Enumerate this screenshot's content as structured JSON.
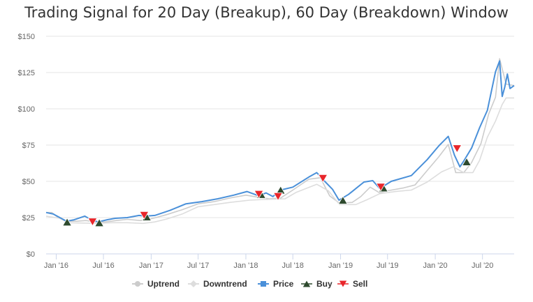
{
  "chart_data": {
    "type": "line",
    "title": "Trading Signal for 20 Day (Breakup), 60 Day (Breakdown) Window",
    "xlabel": "",
    "ylabel": "",
    "x_range": [
      "2015-11-23",
      "2020-10-31"
    ],
    "ylim": [
      0,
      150
    ],
    "y_ticks": [
      0,
      25,
      50,
      75,
      100,
      125,
      150
    ],
    "y_tick_labels": [
      "$0",
      "$25",
      "$50",
      "$75",
      "$100",
      "$125",
      "$150"
    ],
    "x_ticks": [
      "2016-01-01",
      "2016-07-01",
      "2017-01-01",
      "2017-07-01",
      "2018-01-01",
      "2018-07-01",
      "2019-01-01",
      "2019-07-01",
      "2020-01-01",
      "2020-07-01"
    ],
    "x_tick_labels": [
      "Jan '16",
      "Jul '16",
      "Jan '17",
      "Jul '17",
      "Jan '18",
      "Jul '18",
      "Jan '19",
      "Jul '19",
      "Jan '20",
      "Jul '20"
    ],
    "grid": true,
    "legend_position": "bottom",
    "series": [
      {
        "name": "Uptrend",
        "color": "#cccccc",
        "points": [
          [
            "2015-11-23",
            28.5
          ],
          [
            "2015-12-15",
            28.5
          ],
          [
            "2016-01-10",
            24.8
          ],
          [
            "2016-02-15",
            22.5
          ],
          [
            "2016-03-20",
            22.5
          ],
          [
            "2016-04-25",
            23.0
          ],
          [
            "2016-06-01",
            22.0
          ],
          [
            "2016-07-10",
            22.0
          ],
          [
            "2016-08-20",
            23.0
          ],
          [
            "2016-10-01",
            23.8
          ],
          [
            "2016-11-20",
            23.0
          ],
          [
            "2016-12-15",
            23.5
          ],
          [
            "2017-01-15",
            24.8
          ],
          [
            "2017-03-01",
            27.0
          ],
          [
            "2017-05-01",
            30.5
          ],
          [
            "2017-07-01",
            34.5
          ],
          [
            "2017-09-01",
            36.0
          ],
          [
            "2017-11-01",
            38.5
          ],
          [
            "2018-01-01",
            40.5
          ],
          [
            "2018-02-20",
            39.0
          ],
          [
            "2018-04-01",
            38.0
          ],
          [
            "2018-05-15",
            38.5
          ],
          [
            "2018-07-01",
            44.0
          ],
          [
            "2018-09-01",
            51.5
          ],
          [
            "2018-10-15",
            52.5
          ],
          [
            "2018-11-20",
            40.0
          ],
          [
            "2018-12-28",
            35.0
          ],
          [
            "2019-02-15",
            35.5
          ],
          [
            "2019-03-20",
            39.5
          ],
          [
            "2019-04-25",
            46.0
          ],
          [
            "2019-06-01",
            42.0
          ],
          [
            "2019-07-01",
            43.5
          ],
          [
            "2019-09-01",
            45.5
          ],
          [
            "2019-10-15",
            47.5
          ],
          [
            "2019-12-01",
            57.5
          ],
          [
            "2020-01-15",
            67.0
          ],
          [
            "2020-02-20",
            75.5
          ],
          [
            "2020-03-20",
            56.0
          ],
          [
            "2020-04-20",
            56.0
          ],
          [
            "2020-05-20",
            63.0
          ],
          [
            "2020-06-25",
            76.0
          ],
          [
            "2020-07-25",
            96.5
          ],
          [
            "2020-08-20",
            108.0
          ],
          [
            "2020-09-05",
            134.5
          ],
          [
            "2020-09-30",
            117.0
          ],
          [
            "2020-10-31",
            116.0
          ]
        ]
      },
      {
        "name": "Downtrend",
        "color": "#dddddd",
        "points": [
          [
            "2015-11-23",
            26.0
          ],
          [
            "2016-01-15",
            24.5
          ],
          [
            "2016-02-15",
            21.5
          ],
          [
            "2016-06-01",
            21.0
          ],
          [
            "2016-08-01",
            21.5
          ],
          [
            "2016-10-01",
            21.5
          ],
          [
            "2016-12-01",
            21.0
          ],
          [
            "2017-01-15",
            22.0
          ],
          [
            "2017-03-01",
            24.0
          ],
          [
            "2017-05-01",
            27.5
          ],
          [
            "2017-07-01",
            32.5
          ],
          [
            "2017-09-01",
            34.0
          ],
          [
            "2017-11-01",
            35.5
          ],
          [
            "2018-01-15",
            37.0
          ],
          [
            "2018-03-15",
            37.5
          ],
          [
            "2018-06-01",
            38.0
          ],
          [
            "2018-07-15",
            42.5
          ],
          [
            "2018-10-01",
            48.0
          ],
          [
            "2018-11-15",
            43.5
          ],
          [
            "2018-12-28",
            34.0
          ],
          [
            "2019-03-01",
            34.0
          ],
          [
            "2019-04-15",
            37.5
          ],
          [
            "2019-06-01",
            41.5
          ],
          [
            "2019-08-01",
            43.0
          ],
          [
            "2019-10-01",
            44.0
          ],
          [
            "2019-12-01",
            49.5
          ],
          [
            "2020-01-25",
            56.5
          ],
          [
            "2020-03-10",
            60.0
          ],
          [
            "2020-04-20",
            56.0
          ],
          [
            "2020-05-25",
            56.0
          ],
          [
            "2020-06-20",
            64.5
          ],
          [
            "2020-07-20",
            80.5
          ],
          [
            "2020-08-20",
            91.5
          ],
          [
            "2020-09-15",
            103.0
          ],
          [
            "2020-09-30",
            107.5
          ],
          [
            "2020-10-31",
            107.5
          ]
        ]
      },
      {
        "name": "Price",
        "color": "#4a90d9",
        "points": [
          [
            "2015-11-23",
            28.5
          ],
          [
            "2015-12-20",
            27.5
          ],
          [
            "2016-01-15",
            25.0
          ],
          [
            "2016-02-10",
            22.5
          ],
          [
            "2016-03-10",
            23.5
          ],
          [
            "2016-04-20",
            26.0
          ],
          [
            "2016-05-15",
            23.5
          ],
          [
            "2016-06-10",
            22.0
          ],
          [
            "2016-07-15",
            23.5
          ],
          [
            "2016-08-15",
            24.5
          ],
          [
            "2016-10-01",
            25.0
          ],
          [
            "2016-11-15",
            26.5
          ],
          [
            "2016-12-10",
            26.0
          ],
          [
            "2017-01-15",
            26.5
          ],
          [
            "2017-03-15",
            30.0
          ],
          [
            "2017-05-15",
            34.5
          ],
          [
            "2017-07-15",
            36.0
          ],
          [
            "2017-09-15",
            38.0
          ],
          [
            "2017-11-15",
            40.5
          ],
          [
            "2018-01-05",
            43.0
          ],
          [
            "2018-02-20",
            40.0
          ],
          [
            "2018-03-20",
            42.0
          ],
          [
            "2018-04-15",
            39.5
          ],
          [
            "2018-05-15",
            44.0
          ],
          [
            "2018-07-01",
            46.0
          ],
          [
            "2018-09-01",
            53.0
          ],
          [
            "2018-10-01",
            56.0
          ],
          [
            "2018-11-01",
            50.0
          ],
          [
            "2018-12-01",
            44.5
          ],
          [
            "2018-12-26",
            37.0
          ],
          [
            "2019-02-01",
            41.0
          ],
          [
            "2019-04-01",
            49.5
          ],
          [
            "2019-05-05",
            50.5
          ],
          [
            "2019-06-01",
            45.0
          ],
          [
            "2019-07-15",
            50.0
          ],
          [
            "2019-10-01",
            54.0
          ],
          [
            "2019-12-01",
            65.0
          ],
          [
            "2020-01-15",
            74.5
          ],
          [
            "2020-02-20",
            81.0
          ],
          [
            "2020-03-15",
            68.0
          ],
          [
            "2020-04-05",
            60.0
          ],
          [
            "2020-04-20",
            64.0
          ],
          [
            "2020-05-20",
            73.0
          ],
          [
            "2020-06-20",
            87.0
          ],
          [
            "2020-07-20",
            99.0
          ],
          [
            "2020-08-20",
            125.5
          ],
          [
            "2020-09-05",
            133.0
          ],
          [
            "2020-09-15",
            108.5
          ],
          [
            "2020-09-25",
            115.0
          ],
          [
            "2020-10-05",
            124.0
          ],
          [
            "2020-10-15",
            114.0
          ],
          [
            "2020-10-31",
            116.0
          ]
        ]
      },
      {
        "name": "Buy",
        "color": "#2e4a2e",
        "marker": "triangle-up",
        "points": [
          [
            "2016-02-12",
            22.0
          ],
          [
            "2016-06-15",
            21.5
          ],
          [
            "2016-12-15",
            25.5
          ],
          [
            "2018-03-01",
            41.0
          ],
          [
            "2018-05-15",
            44.0
          ],
          [
            "2019-01-10",
            37.0
          ],
          [
            "2019-06-15",
            45.5
          ],
          [
            "2020-05-01",
            63.5
          ]
        ]
      },
      {
        "name": "Sell",
        "color": "#e8262b",
        "marker": "triangle-down",
        "points": [
          [
            "2016-05-20",
            22.0
          ],
          [
            "2016-12-05",
            26.5
          ],
          [
            "2018-02-20",
            41.0
          ],
          [
            "2018-05-05",
            39.5
          ],
          [
            "2018-10-25",
            52.0
          ],
          [
            "2019-06-05",
            46.0
          ],
          [
            "2020-03-25",
            72.5
          ]
        ]
      }
    ]
  }
}
